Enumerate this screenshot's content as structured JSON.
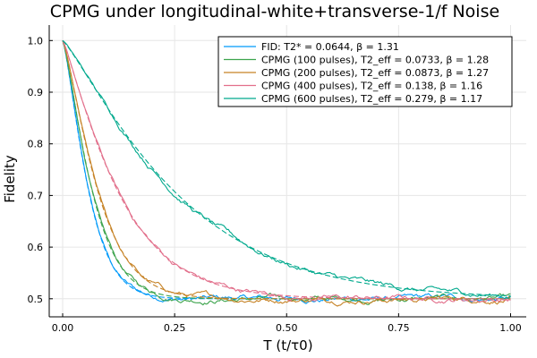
{
  "chart_data": {
    "type": "line",
    "title": "CPMG under longitudinal-white+transverse-1/f Noise",
    "xlabel": "T (t/τ0)",
    "ylabel": "Fidelity",
    "xlim": [
      -0.03,
      1.035
    ],
    "ylim": [
      0.465,
      1.03
    ],
    "xticks": [
      0.0,
      0.25,
      0.5,
      0.75,
      1.0
    ],
    "xtick_labels": [
      "0.00",
      "0.25",
      "0.50",
      "0.75",
      "1.00"
    ],
    "yticks": [
      0.5,
      0.6,
      0.7,
      0.8,
      0.9,
      1.0
    ],
    "ytick_labels": [
      "0.5",
      "0.6",
      "0.7",
      "0.8",
      "0.9",
      "1.0"
    ],
    "grid": true,
    "legend_position": "top-right",
    "baseline": 0.5,
    "series": [
      {
        "name": "FID: T2* = 0.0644, β = 1.31",
        "color": "#009AFA",
        "T": 0.0644,
        "beta": 1.31
      },
      {
        "name": "CPMG (100 pulses), T2_eff = 0.0733, β = 1.28",
        "color": "#3DA44D",
        "T": 0.0733,
        "beta": 1.28
      },
      {
        "name": "CPMG (200 pulses), T2_eff = 0.0873, β = 1.27",
        "color": "#C68225",
        "T": 0.0873,
        "beta": 1.27
      },
      {
        "name": "CPMG (400 pulses), T2_eff = 0.138, β = 1.16",
        "color": "#E26F8B",
        "T": 0.138,
        "beta": 1.16
      },
      {
        "name": "CPMG (600 pulses), T2_eff = 0.279, β = 1.17",
        "color": "#00A98D",
        "T": 0.279,
        "beta": 1.17
      }
    ]
  }
}
